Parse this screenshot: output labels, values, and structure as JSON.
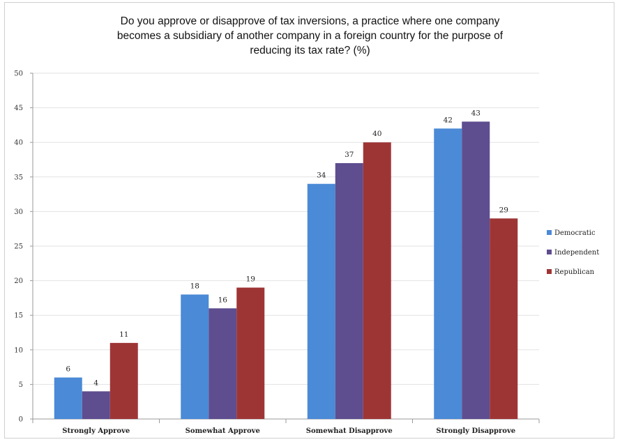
{
  "chart_data": {
    "type": "bar",
    "title_lines": [
      "Do you approve or disapprove of tax inversions, a practice where one company",
      "becomes a subsidiary of another company in a foreign country for the purpose of",
      "reducing its tax rate? (%)"
    ],
    "categories": [
      "Strongly Approve",
      "Somewhat Approve",
      "Somewhat Disapprove",
      "Strongly Disapprove"
    ],
    "series": [
      {
        "name": "Democratic",
        "color": "#4a8ad6",
        "values": [
          6,
          18,
          34,
          42
        ]
      },
      {
        "name": "Independent",
        "color": "#5e4d8f",
        "values": [
          4,
          16,
          37,
          43
        ]
      },
      {
        "name": "Republican",
        "color": "#9e3535",
        "values": [
          11,
          19,
          40,
          29
        ]
      }
    ],
    "ylim": [
      0,
      50
    ],
    "yticks": [
      0,
      5,
      10,
      15,
      20,
      25,
      30,
      35,
      40,
      45,
      50
    ],
    "grid": true,
    "legend_position": "right"
  }
}
